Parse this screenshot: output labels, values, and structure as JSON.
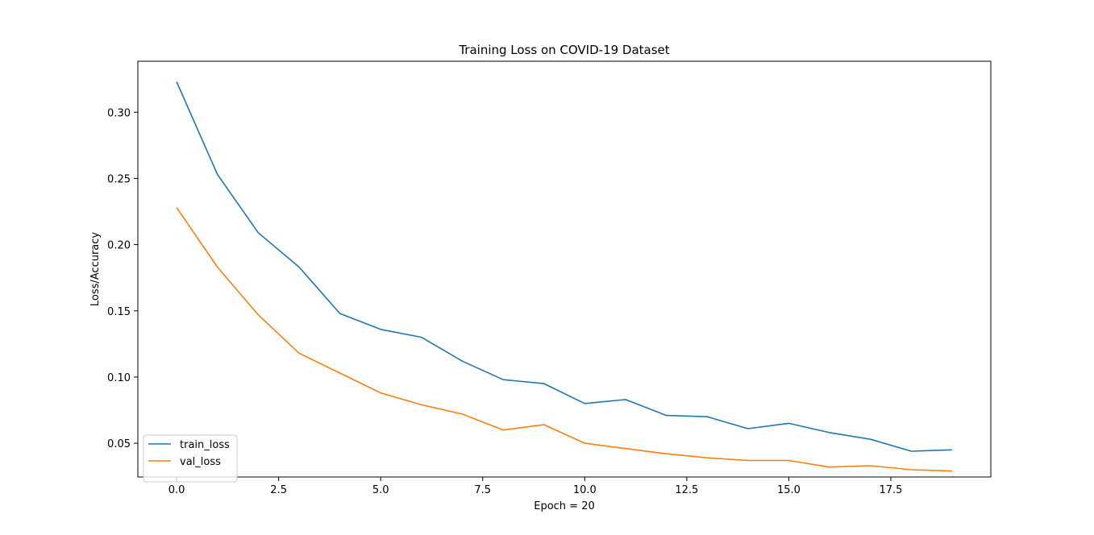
{
  "chart_data": {
    "type": "line",
    "title": "Training Loss on COVID-19 Dataset",
    "xlabel": "Epoch = 20",
    "ylabel": "Loss/Accuracy",
    "xlim": [
      -0.95,
      19.95
    ],
    "ylim": [
      0.0245,
      0.3385
    ],
    "xticks": [
      0.0,
      2.5,
      5.0,
      7.5,
      10.0,
      12.5,
      15.0,
      17.5
    ],
    "xtick_labels": [
      "0.0",
      "2.5",
      "5.0",
      "7.5",
      "10.0",
      "12.5",
      "15.0",
      "17.5"
    ],
    "yticks": [
      0.05,
      0.1,
      0.15,
      0.2,
      0.25,
      0.3
    ],
    "ytick_labels": [
      "0.05",
      "0.10",
      "0.15",
      "0.20",
      "0.25",
      "0.30"
    ],
    "grid": false,
    "legend_position": "lower-left",
    "x": [
      0,
      1,
      2,
      3,
      4,
      5,
      6,
      7,
      8,
      9,
      10,
      11,
      12,
      13,
      14,
      15,
      16,
      17,
      18,
      19
    ],
    "series": [
      {
        "name": "train_loss",
        "color": "#1f77b4",
        "values": [
          0.323,
          0.253,
          0.209,
          0.183,
          0.148,
          0.136,
          0.13,
          0.112,
          0.098,
          0.095,
          0.08,
          0.083,
          0.071,
          0.07,
          0.061,
          0.065,
          0.058,
          0.053,
          0.044,
          0.045
        ]
      },
      {
        "name": "val_loss",
        "color": "#ff7f0e",
        "values": [
          0.228,
          0.183,
          0.147,
          0.118,
          0.103,
          0.088,
          0.079,
          0.072,
          0.06,
          0.064,
          0.05,
          0.046,
          0.042,
          0.039,
          0.037,
          0.037,
          0.032,
          0.033,
          0.03,
          0.029
        ]
      }
    ]
  }
}
